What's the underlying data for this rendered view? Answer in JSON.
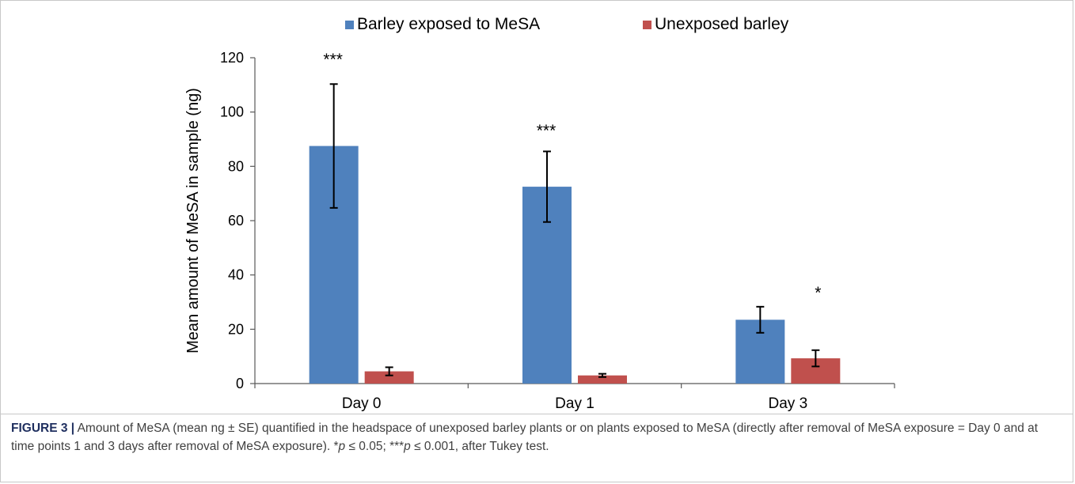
{
  "chart_data": {
    "type": "bar",
    "categories": [
      "Day 0",
      "Day 1",
      "Day 3"
    ],
    "series": [
      {
        "name": "Barley exposed to MeSA",
        "color": "#4f81bd",
        "values": [
          87.5,
          72.5,
          23.5
        ],
        "error": [
          22.8,
          13.0,
          4.8
        ]
      },
      {
        "name": "Unexposed barley",
        "color": "#c0504d",
        "values": [
          4.5,
          3.0,
          9.3
        ],
        "error": [
          1.5,
          0.6,
          3.0
        ]
      }
    ],
    "annotations": [
      "***",
      "***",
      "*"
    ],
    "ylabel": "Mean amount of MeSA in sample (ng)",
    "xlabel": "",
    "ylim": [
      0,
      120
    ],
    "yticks": [
      0,
      20,
      40,
      60,
      80,
      100,
      120
    ],
    "grid": false,
    "legend_position": "top"
  },
  "caption": {
    "label": "FIGURE 3 |",
    "text_1": " Amount of MeSA (mean ng ± SE) quantified in the headspace of unexposed barley plants or on plants exposed to MeSA (directly after removal of MeSA exposure = Day 0 and at time points 1 and 3 days after removal of MeSA exposure). *",
    "p1": "p",
    "text_2": " ≤ 0.05; ***",
    "p2": "p",
    "text_3": " ≤ 0.001, after Tukey test."
  }
}
